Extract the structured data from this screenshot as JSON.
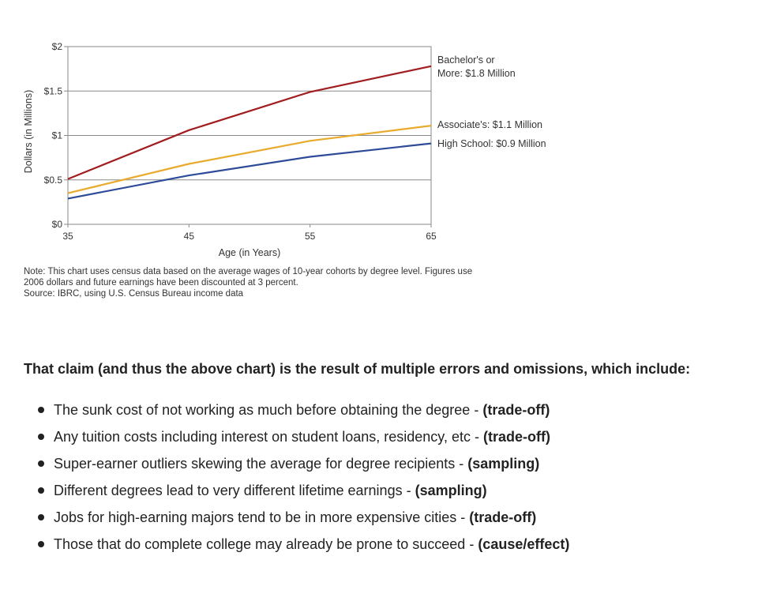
{
  "chart_data": {
    "type": "line",
    "title": "",
    "xlabel": "Age (in Years)",
    "ylabel": "Dollars (in Millions)",
    "x": [
      35,
      45,
      55,
      65
    ],
    "x_ticks": [
      "35",
      "45",
      "55",
      "65"
    ],
    "ylim": [
      0,
      2
    ],
    "y_ticks": [
      {
        "value": 0,
        "label": "$0"
      },
      {
        "value": 0.5,
        "label": "$0.5"
      },
      {
        "value": 1,
        "label": "$1"
      },
      {
        "value": 1.5,
        "label": "$1.5"
      },
      {
        "value": 2,
        "label": "$2"
      }
    ],
    "grid": true,
    "series": [
      {
        "name": "Bachelor's or More",
        "values": [
          0.51,
          1.06,
          1.49,
          1.78
        ],
        "color": "#a11d1f",
        "end_label": [
          "Bachelor's or",
          "More: $1.8 Million"
        ]
      },
      {
        "name": "Associate's",
        "values": [
          0.35,
          0.68,
          0.94,
          1.11
        ],
        "color": "#e8ab2d",
        "end_label": [
          "Associate's: $1.1 Million"
        ]
      },
      {
        "name": "High School",
        "values": [
          0.29,
          0.55,
          0.76,
          0.91
        ],
        "color": "#2e4b9a",
        "end_label": [
          "High School: $0.9 Million"
        ]
      }
    ]
  },
  "note": {
    "line1": "Note: This chart uses census data based on the average wages of 10-year cohorts by degree level. Figures use",
    "line2": "2006 dollars and future earnings have been discounted at 3 percent.",
    "source": "Source: IBRC, using U.S. Census Bureau income data"
  },
  "claim": "That claim (and thus the above chart) is the result of multiple errors and omissions, which include:",
  "points": [
    {
      "text": "The sunk cost of not working as much before obtaining the degree - ",
      "tag": "(trade-off)"
    },
    {
      "text": "Any tuition costs including interest on student loans, residency, etc - ",
      "tag": "(trade-off)"
    },
    {
      "text": "Super-earner outliers skewing the average for degree recipients - ",
      "tag": "(sampling)"
    },
    {
      "text": "Different degrees lead to very different lifetime earnings - ",
      "tag": "(sampling)"
    },
    {
      "text": "Jobs for high-earning majors tend to be in more expensive cities - ",
      "tag": "(trade-off)"
    },
    {
      "text": "Those that do complete college may already be prone to succeed - ",
      "tag": "(cause/effect)"
    }
  ]
}
